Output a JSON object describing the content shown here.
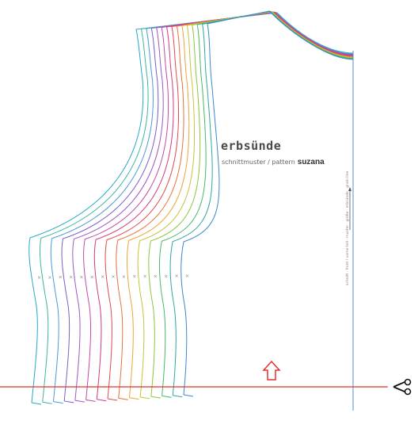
{
  "branding": {
    "logo_text": "erbsünde",
    "subtitle": "schnittmuster / pattern",
    "pattern_name": "suzana"
  },
  "side_note": "schnitt · front / vorne teil · muster · größe · erbsünde · grain line",
  "sizes": 15,
  "size_colors": [
    "#27a9c9",
    "#3cb6a3",
    "#4a9ad9",
    "#7a5fc8",
    "#a156c4",
    "#c24aa8",
    "#d63a7c",
    "#e04a4a",
    "#e9713a",
    "#eea43a",
    "#c9c23c",
    "#8cc63e",
    "#49b86a",
    "#2fa7a0",
    "#3a88d0"
  ],
  "accent_color": "#e0322f"
}
